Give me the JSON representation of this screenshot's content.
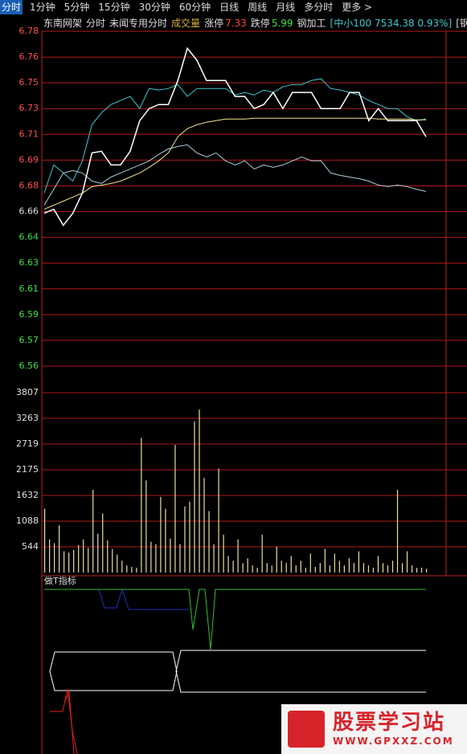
{
  "toolbar": {
    "tabs": [
      "分时",
      "1分钟",
      "5分钟",
      "15分钟",
      "30分钟",
      "60分钟",
      "日线",
      "周线",
      "月线",
      "多分时",
      "更多 >"
    ]
  },
  "header": {
    "stock": "东南网架",
    "mode": "分时",
    "template": "未闻专用分时",
    "volume_label": "成交量",
    "limit_up_label": "涨停",
    "limit_up": "7.33",
    "limit_down_label": "跌停",
    "limit_down": "5.99",
    "sector": "钢加工",
    "index": "[中小100 7534.38 0.93%]",
    "industry": "[钢铁"
  },
  "indicator": {
    "title": "做T指标"
  },
  "watermark": {
    "title": "股票学习站",
    "url": "WWW.GPXXZ.COM"
  },
  "chart_data": [
    {
      "type": "line",
      "x": [
        0,
        6,
        12,
        18,
        24,
        30,
        36,
        42,
        48,
        54,
        60,
        66,
        72,
        78,
        84,
        90,
        96,
        102,
        108,
        114,
        120,
        126,
        132,
        138,
        144,
        150,
        156,
        162,
        168,
        174,
        180,
        186,
        192,
        198,
        204,
        210,
        216,
        222,
        228,
        234,
        240
      ],
      "xlim": [
        0,
        240
      ],
      "ylim": [
        6.5566,
        6.7802
      ],
      "yticks": [
        {
          "value": 6.7802,
          "label": "6.78"
        },
        {
          "value": 6.763,
          "label": "6.76"
        },
        {
          "value": 6.7458,
          "label": "6.75"
        },
        {
          "value": 6.7286,
          "label": "6.73"
        },
        {
          "value": 6.7114,
          "label": "6.71"
        },
        {
          "value": 6.6942,
          "label": "6.69"
        },
        {
          "value": 6.677,
          "label": "6.68"
        },
        {
          "value": 6.6598,
          "label": "6.66"
        },
        {
          "value": 6.6426,
          "label": "6.64"
        },
        {
          "value": 6.6254,
          "label": "6.63"
        },
        {
          "value": 6.6082,
          "label": "6.61"
        },
        {
          "value": 6.591,
          "label": "6.59"
        },
        {
          "value": 6.5738,
          "label": "6.57"
        },
        {
          "value": 6.5566,
          "label": "6.56"
        }
      ],
      "grid": true,
      "series": [
        {
          "color": "#3cc8d0",
          "values": [
            6.6722,
            6.691,
            6.6856,
            6.6802,
            6.6937,
            6.7178,
            6.7259,
            6.7313,
            6.734,
            6.7367,
            6.7286,
            6.742,
            6.741,
            6.742,
            6.7447,
            6.7367,
            6.742,
            6.742,
            6.742,
            6.742,
            6.7377,
            6.7394,
            6.7377,
            6.741,
            6.7394,
            6.7431,
            6.7447,
            6.7447,
            6.7474,
            6.7485,
            6.742,
            6.741,
            6.7394,
            6.7377,
            6.734,
            6.7313,
            6.7286,
            6.7286,
            6.7232,
            6.7205,
            6.7216
          ]
        },
        {
          "color": "#a8d0e0",
          "values": [
            6.6641,
            6.6748,
            6.6856,
            6.6872,
            6.6856,
            6.6802,
            6.6786,
            6.6829,
            6.6856,
            6.6883,
            6.691,
            6.6937,
            6.698,
            6.7017,
            6.7033,
            6.7044,
            6.699,
            6.6963,
            6.699,
            6.6937,
            6.691,
            6.6937,
            6.6883,
            6.691,
            6.6894,
            6.691,
            6.6937,
            6.6963,
            6.6937,
            6.6937,
            6.6856,
            6.684,
            6.6829,
            6.6818,
            6.6802,
            6.6775,
            6.6765,
            6.6775,
            6.6765,
            6.6748,
            6.6732
          ]
        },
        {
          "color": "#f0e68c",
          "values": [
            6.6614,
            6.6641,
            6.6668,
            6.6695,
            6.6722,
            6.6765,
            6.6775,
            6.6786,
            6.6802,
            6.6829,
            6.6856,
            6.6894,
            6.6937,
            6.699,
            6.7098,
            6.7152,
            6.7178,
            6.7195,
            6.7205,
            6.7216,
            6.7216,
            6.7216,
            6.7222,
            6.7222,
            6.7222,
            6.7222,
            6.7222,
            6.7222,
            6.7222,
            6.7222,
            6.7222,
            6.7222,
            6.7222,
            6.7222,
            6.7222,
            6.7216,
            6.7216,
            6.7216,
            6.7216,
            6.7211,
            6.7211
          ]
        },
        {
          "color": "#ffffff",
          "values": [
            6.6587,
            6.6614,
            6.6507,
            6.6587,
            6.6722,
            6.699,
            6.7001,
            6.691,
            6.691,
            6.7001,
            6.7205,
            6.7286,
            6.7313,
            6.7313,
            6.7474,
            6.7689,
            6.7609,
            6.7474,
            6.7474,
            6.7474,
            6.7367,
            6.7367,
            6.7286,
            6.7313,
            6.7394,
            6.7286,
            6.7394,
            6.7394,
            6.7394,
            6.7286,
            6.7286,
            6.7286,
            6.7394,
            6.7394,
            6.7205,
            6.7286,
            6.7205,
            6.7205,
            6.7205,
            6.7205,
            6.7098
          ]
        }
      ]
    },
    {
      "type": "bar",
      "color": "#e8e0a0",
      "ylim": [
        0,
        3807
      ],
      "yticks": [
        3807,
        3263,
        2719,
        2175,
        1632,
        1088,
        544
      ],
      "grid": true,
      "values": [
        1350,
        700,
        620,
        1000,
        450,
        420,
        480,
        580,
        700,
        520,
        1750,
        820,
        1250,
        680,
        500,
        380,
        250,
        150,
        120,
        100,
        2850,
        1950,
        650,
        600,
        1600,
        1350,
        720,
        2700,
        600,
        1400,
        1500,
        3200,
        3450,
        2000,
        1300,
        600,
        2200,
        800,
        350,
        250,
        700,
        200,
        300,
        150,
        100,
        800,
        200,
        150,
        550,
        250,
        200,
        350,
        150,
        250,
        100,
        400,
        120,
        200,
        500,
        150,
        400,
        250,
        150,
        300,
        200,
        450,
        200,
        150,
        100,
        350,
        200,
        150,
        250,
        1750,
        200,
        450,
        150,
        100,
        100,
        80
      ]
    }
  ]
}
